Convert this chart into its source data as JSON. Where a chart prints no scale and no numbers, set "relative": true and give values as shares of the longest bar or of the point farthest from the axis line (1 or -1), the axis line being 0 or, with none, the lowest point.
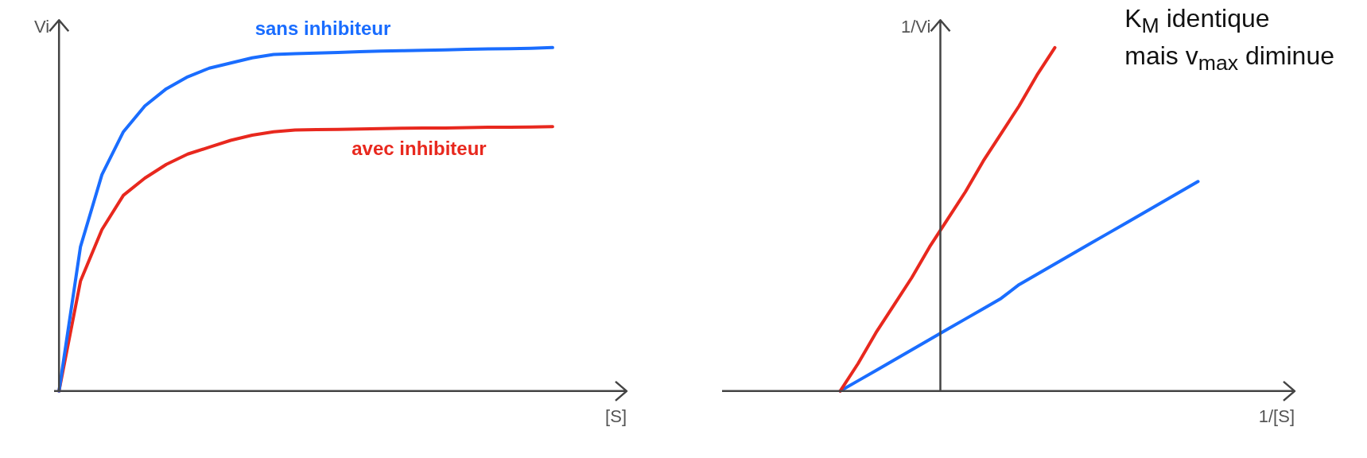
{
  "chart_data": [
    {
      "type": "line",
      "relative": true,
      "xlabel": "[S]",
      "ylabel": "Vi",
      "categories": [
        null,
        null,
        null,
        null,
        null,
        null,
        null,
        null,
        null,
        null,
        null,
        null,
        null,
        null,
        null,
        null,
        null,
        null,
        null,
        null,
        null,
        null,
        null,
        null
      ],
      "series": [
        {
          "name": "sans inhibiteur",
          "color": "#1a6dff",
          "values": [
            0,
            0.42,
            0.63,
            0.755,
            0.83,
            0.88,
            0.915,
            0.94,
            0.955,
            0.97,
            0.98,
            0.982,
            0.984,
            0.986,
            0.988,
            0.99,
            0.991,
            0.992,
            0.993,
            0.995,
            0.996,
            0.997,
            0.998,
            1
          ]
        },
        {
          "name": "avec inhibiteur",
          "color": "#e8281e",
          "values": [
            0,
            0.32,
            0.47,
            0.57,
            0.62,
            0.66,
            0.69,
            0.71,
            0.73,
            0.745,
            0.755,
            0.76,
            0.761,
            0.762,
            0.763,
            0.764,
            0.765,
            0.766,
            0.766,
            0.767,
            0.768,
            0.768,
            0.769,
            0.77
          ]
        }
      ]
    },
    {
      "type": "line",
      "relative": true,
      "xlabel": "1/[S]",
      "ylabel": "1/Vi",
      "annotations": [
        "K$_{M}$ identique\nmais v$_{max}$ diminue"
      ],
      "categories": [
        null,
        null,
        null,
        null,
        null,
        null,
        null,
        null,
        null,
        null,
        null,
        null,
        null,
        null,
        null,
        null,
        null,
        null,
        null,
        null,
        null
      ],
      "series": [
        {
          "color": "#e8281e",
          "values": [
            0,
            0.08,
            0.17,
            0.25,
            0.33,
            0.42,
            0.5,
            0.58,
            0.67,
            0.75,
            0.83,
            0.92,
            1,
            null,
            null,
            null,
            null,
            null,
            null,
            null,
            null
          ]
        },
        {
          "color": "#1a6dff",
          "values": [
            0,
            0.03,
            0.06,
            0.09,
            0.12,
            0.15,
            0.18,
            0.21,
            0.24,
            0.27,
            0.31,
            0.34,
            0.37,
            0.4,
            0.43,
            0.46,
            0.49,
            0.52,
            0.55,
            0.58,
            0.61
          ]
        }
      ]
    }
  ]
}
